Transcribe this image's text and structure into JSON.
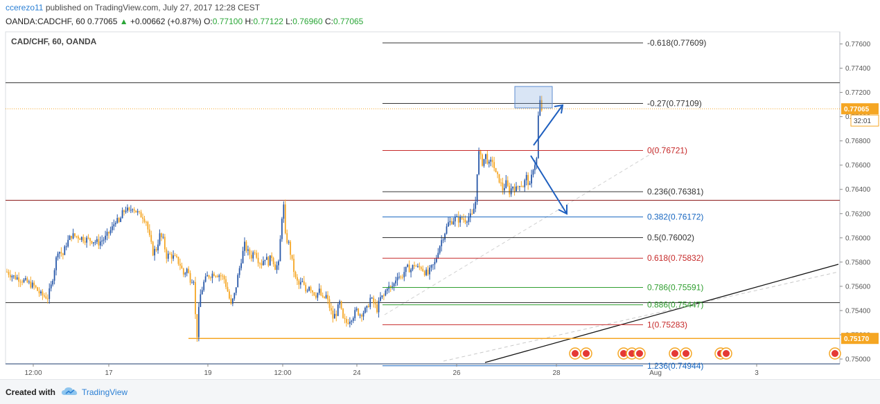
{
  "header": {
    "user": "ccerezo11",
    "published_text": " published on TradingView.com, July 27, 2017 12:28 CEST",
    "symbol_line_prefix": "OANDA:CADCHF, 60  0.77065 ",
    "change_arrow": "▲",
    "change": "+0.00662 (+0.87%)",
    "o_label": "O:",
    "o_value": "0.77100",
    "h_label": "H:",
    "h_value": "0.77122",
    "l_label": "L:",
    "l_value": "0.76960",
    "c_label": "C:",
    "c_value": "0.77065"
  },
  "footer": {
    "created_with": "Created with",
    "brand": "TradingView"
  },
  "colors": {
    "bull": "#2757a8",
    "bear": "#f5a623",
    "current_price": "#f5a623",
    "fib_red": "#c62828",
    "fib_blue": "#1565c0",
    "fib_black": "#333333",
    "fib_green": "#2e9e2e"
  },
  "chart_data": {
    "type": "candlestick",
    "title": "CAD/CHF, 60, OANDA",
    "ylim": [
      0.7496,
      0.777
    ],
    "y_ticks": [
      0.75,
      0.752,
      0.754,
      0.756,
      0.758,
      0.76,
      0.762,
      0.764,
      0.766,
      0.768,
      0.77,
      0.772,
      0.774,
      0.776
    ],
    "y_tick_labels": [
      "0.75000",
      "0.75200",
      "0.75400",
      "0.75600",
      "0.75800",
      "0.76000",
      "0.76200",
      "0.76400",
      "0.76600",
      "0.76800",
      "0.77000",
      "0.77200",
      "0.77400",
      "0.77600"
    ],
    "x_ticks": [
      "12:00",
      "17",
      "19",
      "12:00",
      "24",
      "26",
      "28",
      "Aug",
      "3"
    ],
    "current_price": 0.77065,
    "current_price_label": "0.77065",
    "countdown_label": "32:01",
    "support_price": 0.7517,
    "support_label": "0.75170",
    "horizontal_lines": [
      0.7728,
      0.7631,
      0.75465,
      0.7496
    ],
    "fib_levels": [
      {
        "label": "-0.618(0.77609)",
        "price": 0.77609,
        "color": "#333333"
      },
      {
        "label": "-0.27(0.77109)",
        "price": 0.77109,
        "color": "#333333"
      },
      {
        "label": "0(0.76721)",
        "price": 0.76721,
        "color": "#c62828"
      },
      {
        "label": "0.236(0.76381)",
        "price": 0.76381,
        "color": "#333333"
      },
      {
        "label": "0.382(0.76172)",
        "price": 0.76172,
        "color": "#1565c0"
      },
      {
        "label": "0.5(0.76002)",
        "price": 0.76002,
        "color": "#333333"
      },
      {
        "label": "0.618(0.75832)",
        "price": 0.75832,
        "color": "#c62828"
      },
      {
        "label": "0.786(0.75591)",
        "price": 0.75591,
        "color": "#2e9e2e"
      },
      {
        "label": "0.886(0.75447)",
        "price": 0.75447,
        "color": "#2e9e2e"
      },
      {
        "label": "1(0.75283)",
        "price": 0.75283,
        "color": "#c62828"
      },
      {
        "label": "1.236(0.74944)",
        "price": 0.74944,
        "color": "#1565c0"
      }
    ],
    "price_path": [
      [
        0,
        0.7572
      ],
      [
        4,
        0.7568
      ],
      [
        8,
        0.7566
      ],
      [
        12,
        0.7563
      ],
      [
        16,
        0.756
      ],
      [
        20,
        0.7553
      ],
      [
        24,
        0.7551
      ],
      [
        26,
        0.756
      ],
      [
        28,
        0.7575
      ],
      [
        30,
        0.759
      ],
      [
        33,
        0.7586
      ],
      [
        35,
        0.7595
      ],
      [
        38,
        0.7602
      ],
      [
        42,
        0.7601
      ],
      [
        46,
        0.7599
      ],
      [
        50,
        0.7598
      ],
      [
        54,
        0.7596
      ],
      [
        58,
        0.76
      ],
      [
        62,
        0.7608
      ],
      [
        64,
        0.7615
      ],
      [
        66,
        0.7612
      ],
      [
        68,
        0.762
      ],
      [
        70,
        0.7624
      ],
      [
        72,
        0.7621
      ],
      [
        74,
        0.7626
      ],
      [
        76,
        0.7622
      ],
      [
        78,
        0.7619
      ],
      [
        80,
        0.7618
      ],
      [
        82,
        0.7614
      ],
      [
        84,
        0.76
      ],
      [
        86,
        0.7588
      ],
      [
        88,
        0.7591
      ],
      [
        90,
        0.7602
      ],
      [
        92,
        0.7598
      ],
      [
        94,
        0.7585
      ],
      [
        96,
        0.7586
      ],
      [
        98,
        0.7584
      ],
      [
        100,
        0.7582
      ],
      [
        102,
        0.7578
      ],
      [
        104,
        0.757
      ],
      [
        106,
        0.7574
      ],
      [
        108,
        0.7566
      ],
      [
        110,
        0.7566
      ],
      [
        111,
        0.7536
      ],
      [
        112,
        0.752
      ],
      [
        113,
        0.754
      ],
      [
        114,
        0.7553
      ],
      [
        116,
        0.7563
      ],
      [
        118,
        0.7568
      ],
      [
        122,
        0.7571
      ],
      [
        126,
        0.7569
      ],
      [
        128,
        0.7566
      ],
      [
        130,
        0.7556
      ],
      [
        132,
        0.7544
      ],
      [
        134,
        0.7553
      ],
      [
        136,
        0.7568
      ],
      [
        138,
        0.7582
      ],
      [
        140,
        0.7594
      ],
      [
        142,
        0.7588
      ],
      [
        144,
        0.7585
      ],
      [
        146,
        0.759
      ],
      [
        148,
        0.7582
      ],
      [
        150,
        0.7579
      ],
      [
        152,
        0.7584
      ],
      [
        154,
        0.758
      ],
      [
        156,
        0.7585
      ],
      [
        158,
        0.7576
      ],
      [
        160,
        0.7578
      ],
      [
        162,
        0.7618
      ],
      [
        163,
        0.7626
      ],
      [
        164,
        0.7601
      ],
      [
        166,
        0.7595
      ],
      [
        168,
        0.758
      ],
      [
        170,
        0.7566
      ],
      [
        172,
        0.7561
      ],
      [
        174,
        0.7563
      ],
      [
        176,
        0.7556
      ],
      [
        178,
        0.7561
      ],
      [
        180,
        0.7556
      ],
      [
        182,
        0.7553
      ],
      [
        184,
        0.7556
      ],
      [
        186,
        0.7549
      ],
      [
        188,
        0.7552
      ],
      [
        190,
        0.7543
      ],
      [
        192,
        0.7534
      ],
      [
        194,
        0.7538
      ],
      [
        196,
        0.7546
      ],
      [
        198,
        0.7532
      ],
      [
        200,
        0.753
      ],
      [
        202,
        0.7533
      ],
      [
        204,
        0.7536
      ],
      [
        206,
        0.754
      ],
      [
        208,
        0.7537
      ],
      [
        210,
        0.7539
      ],
      [
        212,
        0.7541
      ],
      [
        214,
        0.755
      ],
      [
        216,
        0.7546
      ],
      [
        218,
        0.7541
      ],
      [
        220,
        0.755
      ],
      [
        222,
        0.7552
      ],
      [
        224,
        0.756
      ],
      [
        226,
        0.7558
      ],
      [
        228,
        0.7562
      ],
      [
        230,
        0.757
      ],
      [
        232,
        0.7567
      ],
      [
        234,
        0.7572
      ],
      [
        236,
        0.7575
      ],
      [
        238,
        0.7574
      ],
      [
        240,
        0.7578
      ],
      [
        242,
        0.7575
      ],
      [
        244,
        0.7576
      ],
      [
        246,
        0.7572
      ],
      [
        248,
        0.757
      ],
      [
        250,
        0.7575
      ],
      [
        252,
        0.7579
      ],
      [
        254,
        0.759
      ],
      [
        256,
        0.7598
      ],
      [
        258,
        0.7605
      ],
      [
        260,
        0.7612
      ],
      [
        262,
        0.7614
      ],
      [
        264,
        0.7616
      ],
      [
        266,
        0.7615
      ],
      [
        268,
        0.7616
      ],
      [
        270,
        0.7615
      ],
      [
        272,
        0.7617
      ],
      [
        274,
        0.7618
      ],
      [
        276,
        0.763
      ],
      [
        277,
        0.7655
      ],
      [
        278,
        0.767
      ],
      [
        280,
        0.7662
      ],
      [
        282,
        0.7668
      ],
      [
        284,
        0.766
      ],
      [
        286,
        0.7664
      ],
      [
        288,
        0.7652
      ],
      [
        290,
        0.7648
      ],
      [
        292,
        0.764
      ],
      [
        294,
        0.7645
      ],
      [
        296,
        0.7638
      ],
      [
        298,
        0.7643
      ],
      [
        300,
        0.764
      ],
      [
        302,
        0.7645
      ],
      [
        304,
        0.7643
      ],
      [
        306,
        0.765
      ],
      [
        308,
        0.7642
      ],
      [
        310,
        0.7658
      ],
      [
        312,
        0.7665
      ],
      [
        313,
        0.77
      ],
      [
        314,
        0.7712
      ],
      [
        315,
        0.7706
      ]
    ]
  }
}
